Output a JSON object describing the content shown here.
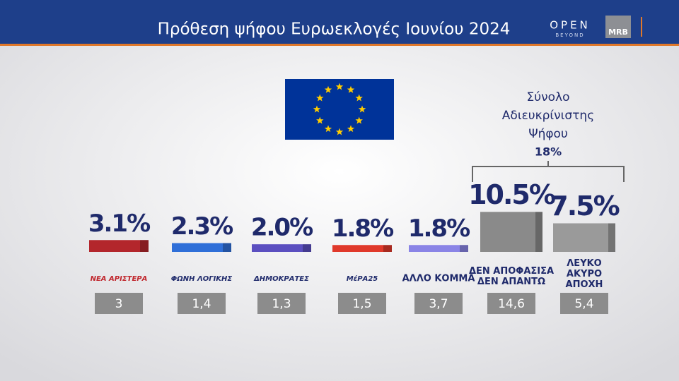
{
  "chart_data": {
    "type": "bar",
    "title": "Πρόθεση ψήφου Ευρωεκλογές Ιουνίου 2024",
    "brand": {
      "name": "OPEN",
      "tagline": "BEYOND",
      "partner": "MRB"
    },
    "categories": [
      "ΝΕΑ ΑΡΙΣΤΕΡΑ",
      "ΦΩΝΗ ΛΟΓΙΚΗΣ",
      "ΔΗΜΟΚΡΑΤΕΣ",
      "ΜέΡΑ25",
      "ΑΛΛΟ ΚΟΜΜΑ",
      "ΔΕΝ ΑΠΟΦΑΣΙΣΑ ΔΕΝ ΑΠΑΝΤΩ",
      "ΛΕΥΚΟ ΑΚΥΡΟ ΑΠΟΧΗ"
    ],
    "values": [
      3.1,
      2.3,
      2.0,
      1.8,
      1.8,
      10.5,
      7.5
    ],
    "value_labels": [
      "3.1%",
      "2.3%",
      "2.0%",
      "1.8%",
      "1.8%",
      "10.5%",
      "7.5%"
    ],
    "colors": [
      "#b3262c",
      "#2f6fd8",
      "#5b4fc0",
      "#e0392b",
      "#8a84e6",
      "#8a8a8a",
      "#9a9a9a"
    ],
    "previous_values": [
      3,
      1.4,
      1.3,
      1.5,
      3.7,
      14.6,
      5.4
    ],
    "previous_labels": [
      "3",
      "1,4",
      "1,3",
      "1,5",
      "3,7",
      "14,6",
      "5,4"
    ],
    "group": {
      "label": "Σύνολο Αδιευκρίνιστης Ψήφου",
      "value": 18,
      "value_label": "18%"
    }
  }
}
